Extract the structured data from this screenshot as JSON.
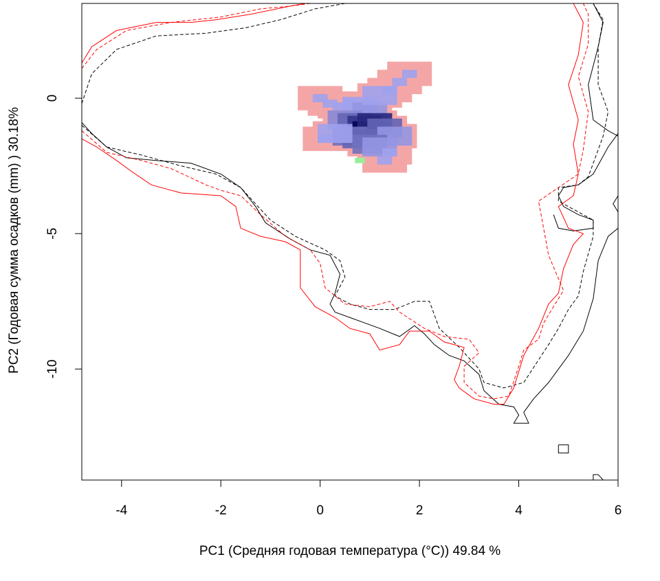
{
  "chart_data": {
    "type": "heatmap",
    "title": "",
    "xlabel": "PC1 (Средняя годовая температура (°C)) 49.84 %",
    "ylabel": "PC2 (Годовая сумма осадков  (mm) ) 30.18%",
    "xlim": [
      -4.8,
      6.0
    ],
    "ylim": [
      -14.1,
      3.5
    ],
    "x_ticks": [
      -4,
      -2,
      0,
      2,
      4,
      6
    ],
    "y_ticks": [
      0,
      -5,
      -10
    ],
    "grid": false,
    "legend": "none",
    "colors": {
      "density_pink": "#f4a6a6",
      "density_blue_light": "#a0a2ee",
      "density_blue_dark": "#03035a",
      "density_green": "#99ee99",
      "outline_black": "#000000",
      "outline_red": "#ff0000"
    },
    "outlines": [
      {
        "color": "#000000",
        "dash": "solid",
        "points": [
          [
            -4.8,
            -0.9
          ],
          [
            -4.6,
            -1.3
          ],
          [
            -4.3,
            -1.8
          ],
          [
            -3.9,
            -2.2
          ],
          [
            -3.3,
            -2.3
          ],
          [
            -2.6,
            -2.4
          ],
          [
            -2.0,
            -2.8
          ],
          [
            -1.6,
            -3.3
          ],
          [
            -1.3,
            -4.0
          ],
          [
            -1.1,
            -4.6
          ],
          [
            -0.6,
            -5.2
          ],
          [
            -0.2,
            -5.6
          ],
          [
            0.2,
            -5.8
          ],
          [
            0.4,
            -6.5
          ],
          [
            0.3,
            -7.2
          ],
          [
            0.2,
            -7.6
          ],
          [
            0.3,
            -7.9
          ],
          [
            0.6,
            -8.1
          ],
          [
            0.9,
            -8.3
          ],
          [
            1.2,
            -8.5
          ],
          [
            1.6,
            -8.8
          ],
          [
            1.9,
            -8.4
          ],
          [
            2.1,
            -8.7
          ],
          [
            2.3,
            -9.1
          ],
          [
            2.6,
            -9.5
          ],
          [
            2.9,
            -9.7
          ],
          [
            3.2,
            -10.2
          ],
          [
            3.3,
            -10.8
          ],
          [
            3.6,
            -11.3
          ],
          [
            3.9,
            -11.4
          ],
          [
            4.0,
            -11.7
          ],
          [
            3.9,
            -12.0
          ],
          [
            4.2,
            -12.0
          ],
          [
            4.1,
            -11.6
          ],
          [
            4.3,
            -11.1
          ],
          [
            4.6,
            -10.5
          ],
          [
            5.0,
            -9.5
          ],
          [
            5.3,
            -8.6
          ],
          [
            5.5,
            -7.4
          ],
          [
            5.6,
            -6.0
          ],
          [
            5.8,
            -5.1
          ],
          [
            6.0,
            -4.8
          ]
        ]
      },
      {
        "color": "#000000",
        "dash": "solid",
        "points": [
          [
            4.7,
            -4.3
          ],
          [
            4.8,
            -4.8
          ],
          [
            5.1,
            -4.9
          ],
          [
            5.5,
            -4.8
          ],
          [
            5.5,
            -4.5
          ],
          [
            5.2,
            -4.3
          ],
          [
            4.9,
            -4.0
          ],
          [
            4.8,
            -3.6
          ],
          [
            4.9,
            -3.3
          ],
          [
            5.2,
            -3.2
          ],
          [
            5.5,
            -2.8
          ],
          [
            5.8,
            -1.8
          ],
          [
            6.0,
            -1.3
          ]
        ]
      },
      {
        "color": "#000000",
        "dash": "solid",
        "points": [
          [
            5.5,
            3.5
          ],
          [
            5.7,
            2.8
          ],
          [
            5.6,
            1.9
          ],
          [
            5.4,
            0.5
          ],
          [
            5.5,
            -0.8
          ],
          [
            5.8,
            -1.2
          ],
          [
            6.0,
            -1.4
          ]
        ]
      },
      {
        "color": "#000000",
        "dash": "solid",
        "points": [
          [
            6.0,
            -3.6
          ],
          [
            5.9,
            -3.9
          ],
          [
            6.0,
            -4.2
          ]
        ]
      },
      {
        "color": "#000000",
        "dash": "solid",
        "points": [
          [
            4.8,
            -12.8
          ],
          [
            5.0,
            -12.8
          ],
          [
            5.0,
            -13.1
          ],
          [
            4.8,
            -13.1
          ],
          [
            4.8,
            -12.8
          ]
        ]
      },
      {
        "color": "#000000",
        "dash": "solid",
        "points": [
          [
            5.5,
            -14.1
          ],
          [
            5.5,
            -13.9
          ],
          [
            5.6,
            -13.9
          ],
          [
            5.7,
            -14.1
          ]
        ]
      },
      {
        "color": "#000000",
        "dash": "dashed",
        "points": [
          [
            -4.8,
            -0.2
          ],
          [
            -4.6,
            0.9
          ],
          [
            -4.1,
            1.8
          ],
          [
            -3.3,
            2.3
          ],
          [
            -2.3,
            2.4
          ],
          [
            -1.5,
            2.6
          ],
          [
            -0.8,
            2.9
          ],
          [
            -0.1,
            3.3
          ],
          [
            0.5,
            3.5
          ]
        ]
      },
      {
        "color": "#000000",
        "dash": "dashed",
        "points": [
          [
            -4.8,
            -1.0
          ],
          [
            -4.3,
            -1.8
          ],
          [
            -3.6,
            -2.1
          ],
          [
            -2.8,
            -2.5
          ],
          [
            -2.1,
            -2.8
          ],
          [
            -1.6,
            -3.3
          ],
          [
            -1.0,
            -4.5
          ],
          [
            -0.5,
            -5.1
          ],
          [
            0.1,
            -5.6
          ],
          [
            0.4,
            -6.0
          ],
          [
            0.5,
            -6.6
          ],
          [
            0.3,
            -7.3
          ],
          [
            0.6,
            -7.6
          ],
          [
            1.0,
            -7.8
          ],
          [
            1.5,
            -7.8
          ],
          [
            1.9,
            -7.5
          ],
          [
            2.2,
            -7.5
          ],
          [
            2.3,
            -8.0
          ],
          [
            2.4,
            -8.5
          ],
          [
            2.8,
            -9.2
          ],
          [
            3.2,
            -10.0
          ],
          [
            3.3,
            -10.5
          ],
          [
            3.7,
            -10.7
          ],
          [
            4.1,
            -10.5
          ],
          [
            4.6,
            -9.1
          ],
          [
            4.8,
            -8.5
          ],
          [
            5.0,
            -7.8
          ],
          [
            5.2,
            -7.3
          ],
          [
            5.3,
            -6.4
          ],
          [
            5.5,
            -5.1
          ],
          [
            5.5,
            -4.5
          ],
          [
            5.1,
            -4.1
          ],
          [
            4.8,
            -3.8
          ],
          [
            4.8,
            -3.3
          ],
          [
            5.2,
            -3.2
          ],
          [
            5.4,
            -2.9
          ],
          [
            5.7,
            -1.4
          ],
          [
            5.8,
            -0.5
          ],
          [
            5.6,
            0.5
          ],
          [
            5.6,
            1.9
          ],
          [
            5.7,
            2.9
          ],
          [
            5.5,
            3.5
          ]
        ]
      },
      {
        "color": "#ff0000",
        "dash": "solid",
        "points": [
          [
            -4.8,
            1.3
          ],
          [
            -4.6,
            1.9
          ],
          [
            -4.1,
            2.5
          ],
          [
            -3.3,
            2.8
          ],
          [
            -2.6,
            2.8
          ],
          [
            -2.1,
            2.9
          ],
          [
            -1.4,
            3.1
          ],
          [
            -0.6,
            3.4
          ],
          [
            -0.3,
            3.5
          ]
        ]
      },
      {
        "color": "#ff0000",
        "dash": "solid",
        "points": [
          [
            -4.8,
            -1.5
          ],
          [
            -4.5,
            -1.8
          ],
          [
            -4.1,
            -2.3
          ],
          [
            -3.8,
            -2.7
          ],
          [
            -3.4,
            -3.2
          ],
          [
            -2.8,
            -3.5
          ],
          [
            -2.0,
            -3.6
          ],
          [
            -1.7,
            -4.0
          ],
          [
            -1.6,
            -4.8
          ],
          [
            -1.2,
            -5.1
          ],
          [
            -0.7,
            -5.3
          ],
          [
            -0.4,
            -5.6
          ],
          [
            -0.4,
            -6.2
          ],
          [
            -0.4,
            -7.0
          ],
          [
            -0.1,
            -7.7
          ],
          [
            0.3,
            -8.1
          ],
          [
            0.6,
            -8.5
          ],
          [
            1.0,
            -8.7
          ],
          [
            1.2,
            -9.3
          ],
          [
            1.6,
            -9.1
          ],
          [
            1.8,
            -8.6
          ],
          [
            2.2,
            -8.6
          ],
          [
            2.5,
            -9.0
          ],
          [
            2.9,
            -9.2
          ],
          [
            2.8,
            -9.9
          ],
          [
            2.7,
            -10.4
          ],
          [
            2.8,
            -10.7
          ],
          [
            3.1,
            -11.1
          ],
          [
            3.5,
            -11.3
          ],
          [
            3.7,
            -11.3
          ],
          [
            3.9,
            -10.7
          ],
          [
            4.1,
            -9.5
          ],
          [
            4.4,
            -8.5
          ],
          [
            4.6,
            -7.6
          ],
          [
            4.8,
            -7.2
          ],
          [
            4.9,
            -6.3
          ],
          [
            5.1,
            -5.4
          ],
          [
            5.3,
            -5.0
          ],
          [
            5.0,
            -4.8
          ],
          [
            4.8,
            -4.0
          ],
          [
            5.1,
            -3.6
          ],
          [
            5.2,
            -2.8
          ],
          [
            5.1,
            -1.7
          ],
          [
            5.2,
            -0.8
          ],
          [
            5.0,
            0.5
          ],
          [
            5.2,
            1.6
          ],
          [
            5.3,
            2.8
          ],
          [
            5.1,
            3.5
          ]
        ]
      },
      {
        "color": "#ff0000",
        "dash": "dashed",
        "points": [
          [
            -4.8,
            1.1
          ],
          [
            -4.5,
            1.8
          ],
          [
            -3.9,
            2.5
          ],
          [
            -3.0,
            2.8
          ],
          [
            -2.0,
            3.0
          ],
          [
            -1.2,
            3.3
          ],
          [
            -0.6,
            3.4
          ],
          [
            -0.2,
            3.5
          ]
        ]
      },
      {
        "color": "#ff0000",
        "dash": "dashed",
        "points": [
          [
            -4.8,
            -1.2
          ],
          [
            -4.3,
            -2.0
          ],
          [
            -3.6,
            -2.3
          ],
          [
            -3.0,
            -2.6
          ],
          [
            -2.3,
            -3.2
          ],
          [
            -2.0,
            -3.4
          ],
          [
            -1.6,
            -3.6
          ],
          [
            -1.2,
            -4.3
          ],
          [
            -0.7,
            -5.1
          ],
          [
            -0.2,
            -5.6
          ],
          [
            0.0,
            -6.1
          ],
          [
            0.1,
            -7.0
          ],
          [
            0.5,
            -7.6
          ],
          [
            1.0,
            -7.7
          ],
          [
            1.4,
            -7.5
          ],
          [
            1.6,
            -7.9
          ],
          [
            2.1,
            -8.5
          ],
          [
            2.5,
            -8.8
          ],
          [
            3.0,
            -8.9
          ],
          [
            3.2,
            -9.4
          ],
          [
            2.9,
            -9.9
          ],
          [
            2.9,
            -10.5
          ],
          [
            3.2,
            -11.0
          ],
          [
            3.5,
            -11.1
          ],
          [
            3.8,
            -11.0
          ],
          [
            4.0,
            -9.9
          ],
          [
            4.1,
            -9.3
          ],
          [
            4.4,
            -8.9
          ],
          [
            4.5,
            -8.3
          ],
          [
            4.7,
            -7.7
          ],
          [
            4.9,
            -7.1
          ],
          [
            4.6,
            -5.8
          ],
          [
            4.5,
            -4.8
          ],
          [
            4.4,
            -3.8
          ],
          [
            4.8,
            -3.3
          ],
          [
            5.2,
            -2.8
          ],
          [
            5.3,
            -1.9
          ],
          [
            5.4,
            -0.5
          ],
          [
            5.2,
            0.8
          ],
          [
            5.4,
            2.0
          ],
          [
            5.4,
            3.1
          ],
          [
            5.3,
            3.5
          ]
        ]
      }
    ],
    "density_cells": [
      {
        "x": 0.0,
        "y": 0.0,
        "level": 0.15
      },
      {
        "x": 0.2,
        "y": -0.2,
        "level": 0.2
      },
      {
        "x": 0.4,
        "y": -0.3,
        "level": 0.25
      },
      {
        "x": 0.6,
        "y": -0.2,
        "level": 0.3
      },
      {
        "x": 0.8,
        "y": -0.3,
        "level": 0.35
      },
      {
        "x": 1.0,
        "y": -0.5,
        "level": 0.4
      },
      {
        "x": 1.2,
        "y": 0.1,
        "level": 0.35
      },
      {
        "x": 1.4,
        "y": 0.3,
        "level": 0.3
      },
      {
        "x": 1.6,
        "y": 0.6,
        "level": 0.25
      },
      {
        "x": 1.8,
        "y": 0.9,
        "level": 0.2
      },
      {
        "x": 0.5,
        "y": -0.8,
        "level": 0.45
      },
      {
        "x": 0.7,
        "y": -0.9,
        "level": 0.6
      },
      {
        "x": 0.9,
        "y": -1.0,
        "level": 0.8
      },
      {
        "x": 1.0,
        "y": -1.2,
        "level": 1.0
      },
      {
        "x": 1.1,
        "y": -0.9,
        "level": 0.85
      },
      {
        "x": 1.3,
        "y": -1.1,
        "level": 0.6
      },
      {
        "x": 1.5,
        "y": -1.4,
        "level": 0.4
      },
      {
        "x": 0.6,
        "y": -1.4,
        "level": 0.55
      },
      {
        "x": 0.8,
        "y": -1.5,
        "level": 0.6
      },
      {
        "x": 1.0,
        "y": -1.7,
        "level": 0.55
      },
      {
        "x": 1.2,
        "y": -1.8,
        "level": 0.4
      },
      {
        "x": 0.3,
        "y": -1.3,
        "level": 0.35
      },
      {
        "x": 0.1,
        "y": -1.5,
        "level": 0.25
      },
      {
        "x": 1.4,
        "y": -2.0,
        "level": 0.3
      },
      {
        "x": 1.3,
        "y": -2.3,
        "level": 0.2
      },
      {
        "x": 0.8,
        "y": -2.3,
        "level": 0.05
      }
    ]
  }
}
